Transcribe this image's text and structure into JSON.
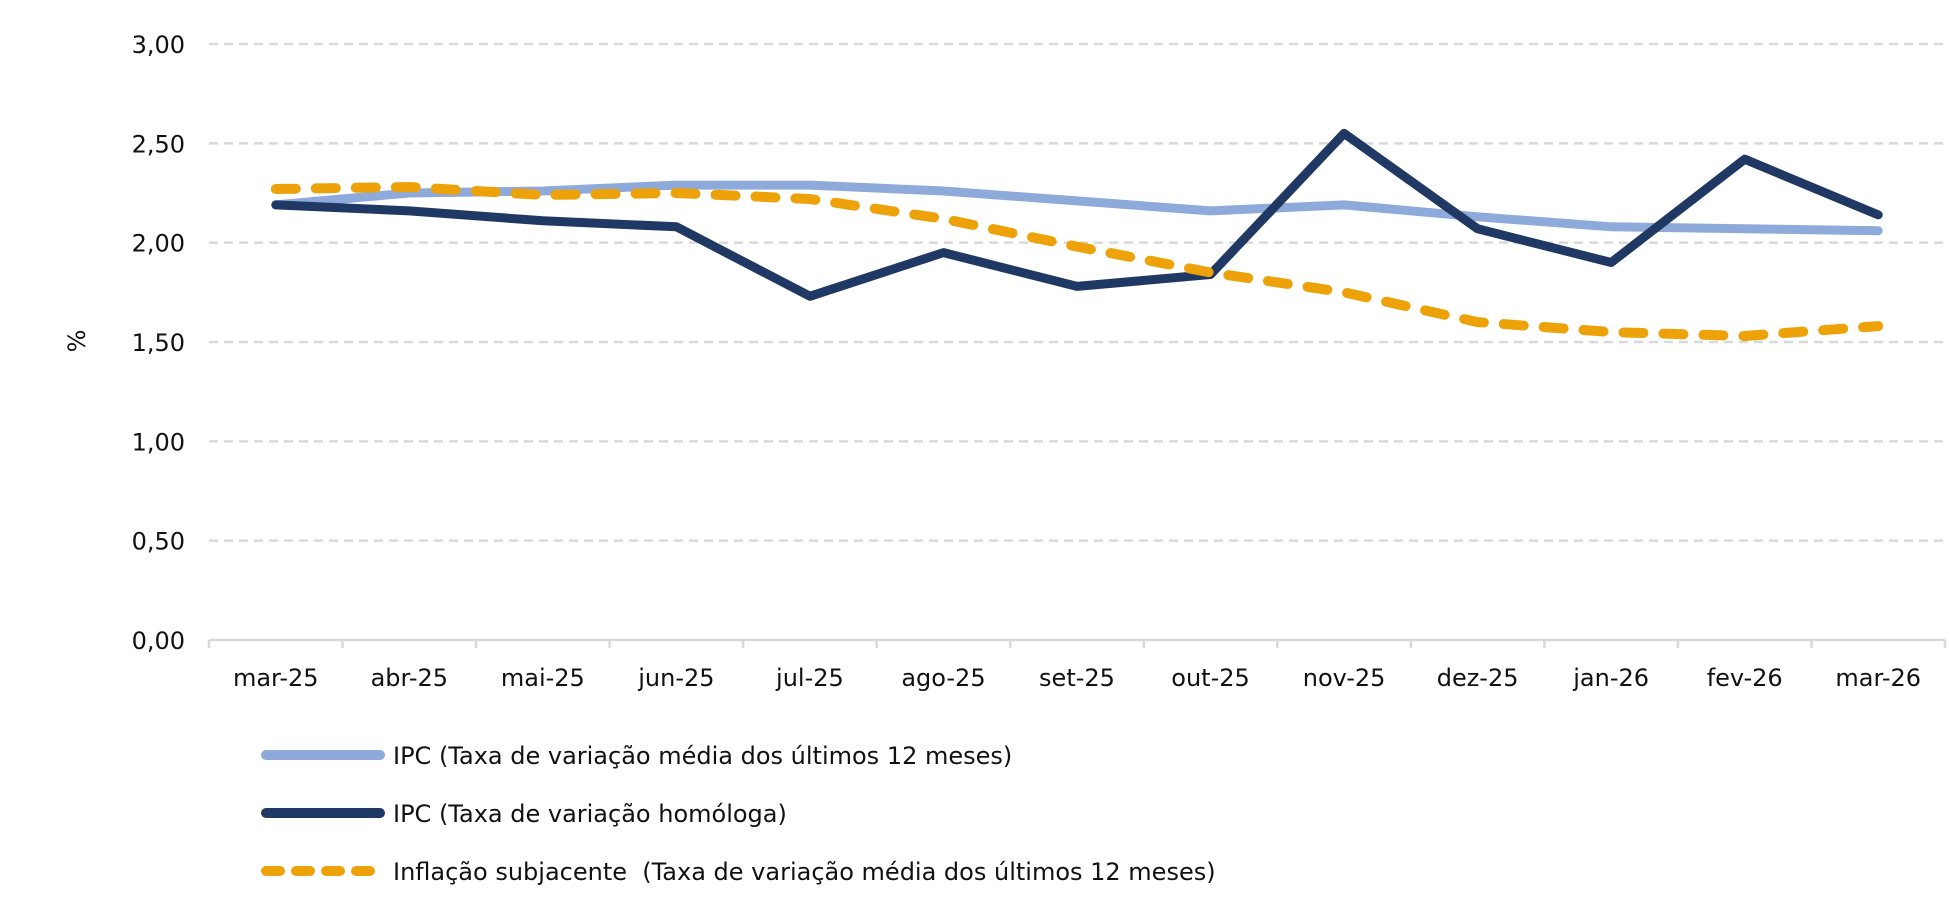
{
  "chart_data": {
    "type": "line",
    "title": "",
    "xlabel": "",
    "ylabel": "%",
    "ylim": [
      0,
      3
    ],
    "yticks": [
      0,
      0.5,
      1,
      1.5,
      2,
      2.5,
      3
    ],
    "ytick_labels": [
      "0,00",
      "0,50",
      "1,00",
      "1,50",
      "2,00",
      "2,50",
      "3,00"
    ],
    "grid": true,
    "legend_position": "bottom",
    "categories": [
      "mar-25",
      "abr-25",
      "mai-25",
      "jun-25",
      "jul-25",
      "ago-25",
      "set-25",
      "out-25",
      "nov-25",
      "dez-25",
      "jan-26",
      "fev-26",
      "mar-26"
    ],
    "series": [
      {
        "name": "IPC (Taxa de variação média dos últimos 12 meses)",
        "color": "#8eaadb",
        "style": "solid",
        "values": [
          2.19,
          2.25,
          2.26,
          2.29,
          2.29,
          2.26,
          2.21,
          2.16,
          2.19,
          2.13,
          2.08,
          2.07,
          2.06
        ]
      },
      {
        "name": "IPC (Taxa de variação homóloga)",
        "color": "#203864",
        "style": "solid",
        "values": [
          2.19,
          2.16,
          2.11,
          2.08,
          1.73,
          1.95,
          1.78,
          1.84,
          2.55,
          2.07,
          1.9,
          2.42,
          2.14
        ]
      },
      {
        "name": "Inflação subjacente  (Taxa de variação média dos últimos 12 meses)",
        "color": "#eea20a",
        "style": "dashed",
        "values": [
          2.27,
          2.28,
          2.24,
          2.25,
          2.22,
          2.12,
          1.98,
          1.85,
          1.75,
          1.6,
          1.55,
          1.53,
          1.58
        ]
      }
    ]
  },
  "colors": {
    "grid": "#d9d9d9",
    "axis": "#d9d9d9",
    "text": "#111111"
  }
}
